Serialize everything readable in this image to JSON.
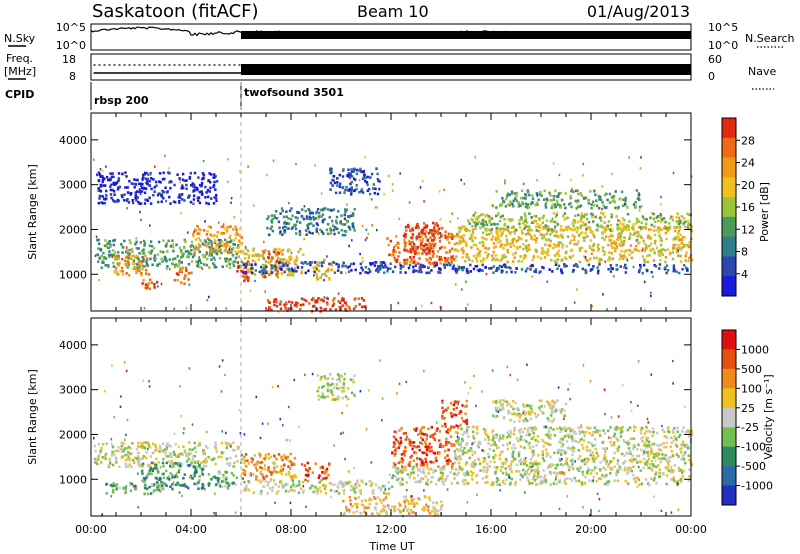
{
  "header": {
    "station": "Saskatoon (fitACF)",
    "beam": "Beam 10",
    "date": "01/Aug/2013"
  },
  "top_panels": {
    "nsky_label": "N.Sky",
    "nsky_ticks": [
      "10^5",
      "10^0"
    ],
    "nsearch_label": "N.Search",
    "nsearch_ticks": [
      "10^5",
      "10^0"
    ],
    "freq_label_1": "Freq.",
    "freq_label_2": "[MHz]",
    "freq_ticks": [
      "18",
      "8"
    ],
    "nave_label": "Nave",
    "nave_ticks": [
      "60",
      "0"
    ],
    "cpid_label": "CPID",
    "cpid_segments": [
      {
        "name": "rbsp 200",
        "start_hour": 0,
        "end_hour": 6
      },
      {
        "name": "twofsound 3501",
        "start_hour": 6,
        "end_hour": 24
      }
    ]
  },
  "chart_data": [
    {
      "type": "heatmap",
      "panel": "power",
      "ylabel": "Slant Range [km]",
      "xlim": [
        0,
        24
      ],
      "ylim": [
        180,
        4600
      ],
      "yticks": [
        1000,
        2000,
        3000,
        4000
      ],
      "colorbar": {
        "label": "Power [dB]",
        "ticks": [
          "4",
          "8",
          "12",
          "16",
          "20",
          "24",
          "28"
        ],
        "colors": [
          "#1a1adc",
          "#2b46b0",
          "#2e7f8c",
          "#4b9a5a",
          "#9ac43a",
          "#f0c020",
          "#f09a1a",
          "#ee6a14",
          "#e02a10"
        ]
      },
      "regions": [
        {
          "t0": 0.2,
          "t1": 6.0,
          "r0": 1150,
          "r1": 1800,
          "level": 3
        },
        {
          "t0": 0.8,
          "t1": 2.2,
          "r0": 1000,
          "r1": 1450,
          "level": 6
        },
        {
          "t0": 2.0,
          "t1": 2.6,
          "r0": 700,
          "r1": 1050,
          "level": 7
        },
        {
          "t0": 3.3,
          "t1": 4.0,
          "r0": 800,
          "r1": 1200,
          "level": 7
        },
        {
          "t0": 4.0,
          "t1": 6.0,
          "r0": 1500,
          "r1": 2100,
          "level": 6
        },
        {
          "t0": 5.8,
          "t1": 6.3,
          "r0": 850,
          "r1": 1350,
          "level": 8
        },
        {
          "t0": 6.0,
          "t1": 8.5,
          "r0": 1000,
          "r1": 1600,
          "level": 5
        },
        {
          "t0": 6.8,
          "t1": 7.6,
          "r0": 950,
          "r1": 1550,
          "level": 7
        },
        {
          "t0": 8.8,
          "t1": 9.6,
          "r0": 900,
          "r1": 1350,
          "level": 5
        },
        {
          "t0": 11.8,
          "t1": 14.5,
          "r0": 1250,
          "r1": 2000,
          "level": 7
        },
        {
          "t0": 12.5,
          "t1": 14.0,
          "r0": 1500,
          "r1": 2200,
          "level": 8
        },
        {
          "t0": 14.5,
          "t1": 24.0,
          "r0": 1300,
          "r1": 2100,
          "level": 5
        },
        {
          "t0": 15.0,
          "t1": 24.0,
          "r0": 2000,
          "r1": 2400,
          "level": 4
        },
        {
          "t0": 6.0,
          "t1": 12.0,
          "r0": 1050,
          "r1": 1300,
          "level": 1
        },
        {
          "t0": 12.0,
          "t1": 24.0,
          "r0": 1050,
          "r1": 1250,
          "level": 1
        },
        {
          "t0": 9.5,
          "t1": 11.5,
          "r0": 2800,
          "r1": 3400,
          "level": 1
        },
        {
          "t0": 16.0,
          "t1": 22.0,
          "r0": 2500,
          "r1": 2900,
          "level": 3
        },
        {
          "t0": 7.0,
          "t1": 10.5,
          "r0": 1900,
          "r1": 2500,
          "level": 2
        },
        {
          "t0": 0.2,
          "t1": 5.0,
          "r0": 2600,
          "r1": 3300,
          "level": 0
        },
        {
          "t0": 7.0,
          "t1": 11.0,
          "r0": 200,
          "r1": 500,
          "level": 8
        }
      ]
    },
    {
      "type": "heatmap",
      "panel": "velocity",
      "ylabel": "Slant Range [km]",
      "xlabel": "Time UT",
      "xlim": [
        0,
        24
      ],
      "ylim": [
        180,
        4600
      ],
      "yticks": [
        1000,
        2000,
        3000,
        4000
      ],
      "xticks": [
        "00:00",
        "04:00",
        "08:00",
        "12:00",
        "16:00",
        "20:00",
        "00:00"
      ],
      "colorbar": {
        "label": "Velocity [m s⁻¹]",
        "ticks": [
          "1000",
          "500",
          "100",
          "25",
          "-25",
          "-100",
          "-500",
          "-1000"
        ],
        "colors": [
          "#2030c0",
          "#2a6aa8",
          "#2e8a60",
          "#70c050",
          "#c8c8c8",
          "#f0c020",
          "#f08a1a",
          "#e85010",
          "#e01010"
        ]
      },
      "regions": [
        {
          "t0": 0.1,
          "t1": 6.0,
          "r0": 1300,
          "r1": 1850,
          "level": 4
        },
        {
          "t0": 2.0,
          "t1": 4.5,
          "r0": 800,
          "r1": 1400,
          "level": 2
        },
        {
          "t0": 4.5,
          "t1": 5.8,
          "r0": 800,
          "r1": 1200,
          "level": 3
        },
        {
          "t0": 6.0,
          "t1": 8.2,
          "r0": 1000,
          "r1": 1600,
          "level": 6
        },
        {
          "t0": 8.5,
          "t1": 9.5,
          "r0": 1000,
          "r1": 1400,
          "level": 7
        },
        {
          "t0": 12.0,
          "t1": 14.5,
          "r0": 1300,
          "r1": 2200,
          "level": 7
        },
        {
          "t0": 14.0,
          "t1": 15.0,
          "r0": 2200,
          "r1": 2800,
          "level": 7
        },
        {
          "t0": 14.5,
          "t1": 24.0,
          "r0": 1300,
          "r1": 2200,
          "level": 4
        },
        {
          "t0": 16.0,
          "t1": 19.0,
          "r0": 2300,
          "r1": 2800,
          "level": 4
        },
        {
          "t0": 10.0,
          "t1": 14.0,
          "r0": 220,
          "r1": 650,
          "level": 5
        },
        {
          "t0": 6.0,
          "t1": 12.0,
          "r0": 700,
          "r1": 1000,
          "level": 4
        },
        {
          "t0": 0.5,
          "t1": 3.0,
          "r0": 700,
          "r1": 950,
          "level": 3
        },
        {
          "t0": 9.0,
          "t1": 10.5,
          "r0": 2800,
          "r1": 3400,
          "level": 4
        },
        {
          "t0": 12.0,
          "t1": 24.0,
          "r0": 900,
          "r1": 1300,
          "level": 4
        }
      ]
    }
  ]
}
